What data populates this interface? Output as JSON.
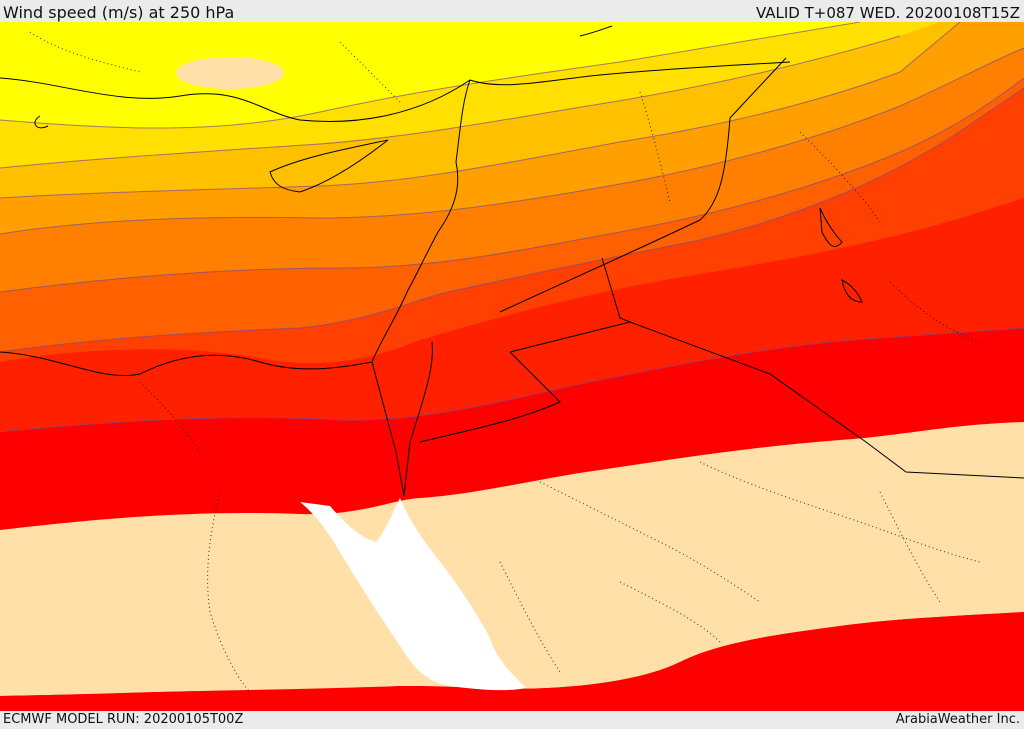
{
  "header": {
    "title": "Wind speed (m/s) at 250 hPa",
    "valid_time": "VALID T+087 WED. 20200108T15Z"
  },
  "footer": {
    "model_run": "ECMWF MODEL RUN: 20200105T00Z",
    "credit": "ArabiaWeather Inc."
  },
  "map": {
    "colors": {
      "band_1": "#ffff00",
      "band_2": "#ffe000",
      "band_3": "#ffc000",
      "band_4": "#ffa000",
      "band_5": "#ff8000",
      "band_6": "#ff6000",
      "band_7": "#ff4000",
      "band_8": "#ff2000",
      "band_9": "#ff0000",
      "calm": "#ffe0a8",
      "sea": "#ffffff",
      "border": "#000000",
      "contour": "#7a4a8a"
    }
  }
}
